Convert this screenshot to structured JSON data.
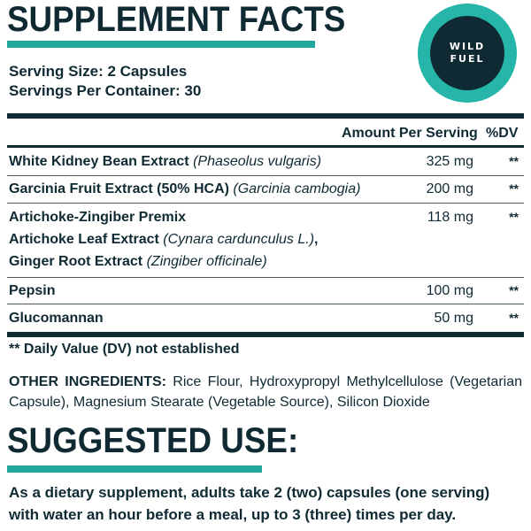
{
  "header": {
    "title": "SUPPLEMENT FACTS",
    "logo_line1": "WILD",
    "logo_line2": "FUEL"
  },
  "serving": {
    "size": "Serving Size: 2 Capsules",
    "per_container": "Servings Per Container: 30"
  },
  "table": {
    "col_amount": "Amount Per Serving",
    "col_dv": "%DV",
    "rows": [
      {
        "name": "White Kidney Bean Extract",
        "latin": "(Phaseolus vulgaris)",
        "amount": "325 mg",
        "dv": "**"
      },
      {
        "name": "Garcinia Fruit Extract (50% HCA)",
        "latin": "(Garcinia cambogia)",
        "amount": "200 mg",
        "dv": "**"
      },
      {
        "name": "Artichoke-Zingiber Premix",
        "amount": "118 mg",
        "dv": "**",
        "sub1_name": "Artichoke Leaf Extract",
        "sub1_latin": "(Cynara cardunculus L.)",
        "sub1_comma": ",",
        "sub2_name": "Ginger Root Extract",
        "sub2_latin": "(Zingiber officinale)"
      },
      {
        "name": "Pepsin",
        "amount": "100 mg",
        "dv": "**"
      },
      {
        "name": "Glucomannan",
        "amount": "50 mg",
        "dv": "**"
      }
    ]
  },
  "footnote": "** Daily Value (DV) not established",
  "other_ingredients": {
    "label": "OTHER INGREDIENTS:",
    "text": " Rice Flour, Hydroxypropyl Methylcellulose (Vegetarian Capsule), Magnesium Stearate (Vegetable Source), Silicon Dioxide"
  },
  "suggested_use": {
    "title": "SUGGESTED USE:",
    "text": "As a dietary supplement, adults take 2 (two) capsules (one serving) with water an hour before a meal, up to 3 (three) times per day."
  },
  "colors": {
    "navy": "#0f2a33",
    "teal": "#1fa89e"
  }
}
